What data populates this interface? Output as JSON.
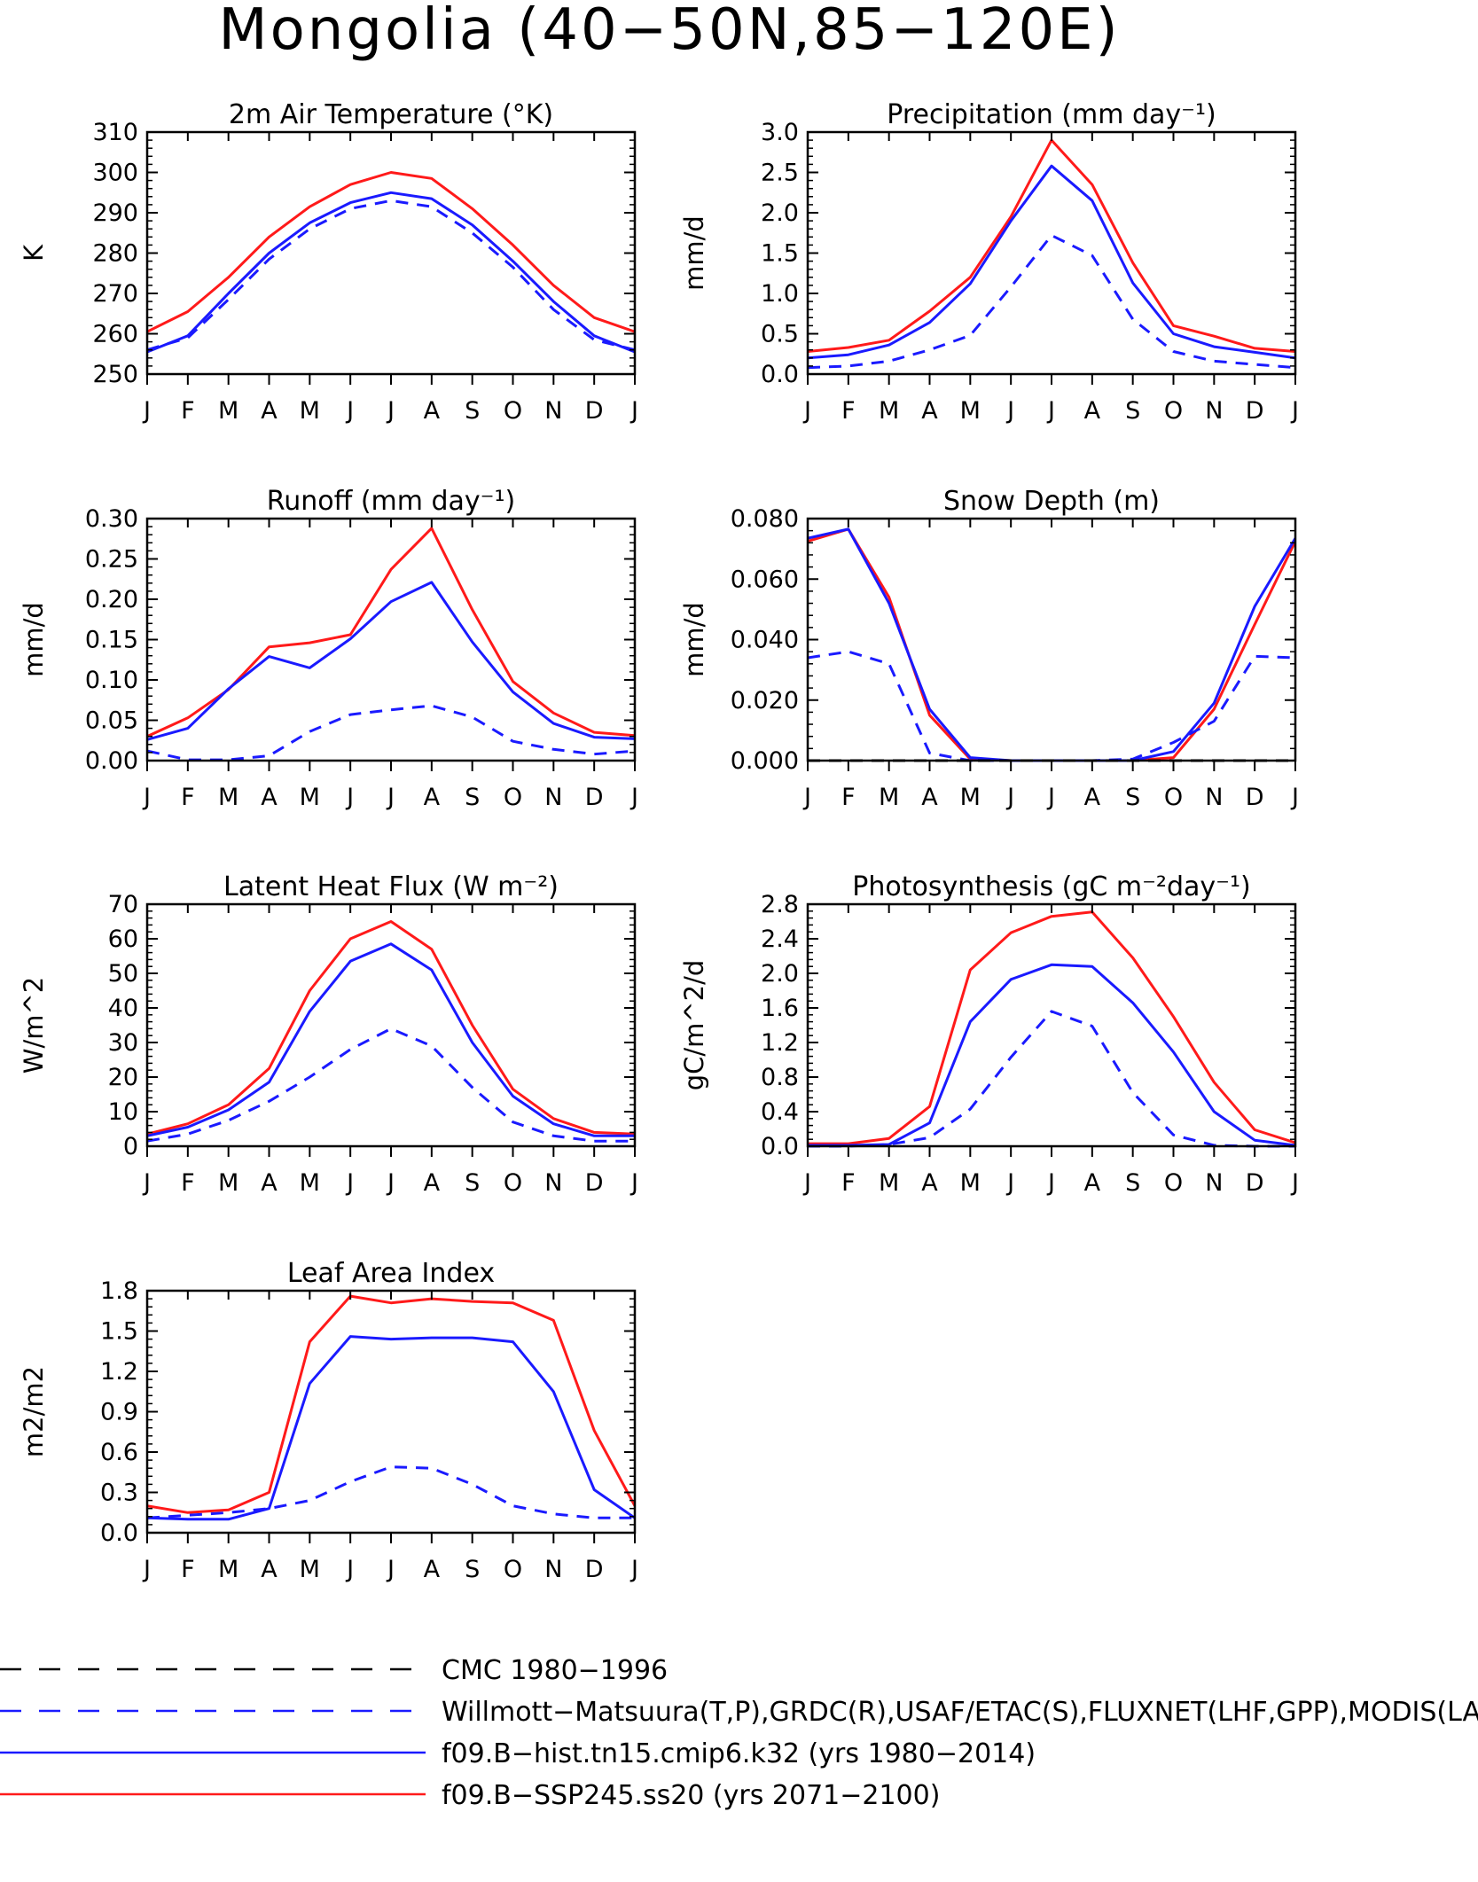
{
  "figure_title": "Mongolia (40−50N,85−120E)",
  "colors": {
    "axis": "#000000",
    "obs": "#1a1aff",
    "hist": "#1a1aff",
    "ssp": "#ff1a1a",
    "cmc": "#000000"
  },
  "month_labels": [
    "J",
    "F",
    "M",
    "A",
    "M",
    "J",
    "J",
    "A",
    "S",
    "O",
    "N",
    "D",
    "J"
  ],
  "legend": [
    {
      "label": "CMC 1980−1996",
      "color": "#000000",
      "style": "dash"
    },
    {
      "label": "Willmott−Matsuura(T,P),GRDC(R),USAF/ETAC(S),FLUXNET(LHF,GPP),MODIS(LAI)",
      "color": "#1a1aff",
      "style": "dash"
    },
    {
      "label": "f09.B−hist.tn15.cmip6.k32 (yrs 1980−2014)",
      "color": "#1a1aff",
      "style": "solid"
    },
    {
      "label": "f09.B−SSP245.ss20 (yrs 2071−2100)",
      "color": "#ff1a1a",
      "style": "solid"
    }
  ],
  "chart_data": [
    {
      "type": "line",
      "title": "2m Air Temperature (°K)",
      "ylabel": "K",
      "ylim": [
        250,
        310
      ],
      "yticks": [
        250,
        260,
        270,
        280,
        290,
        300,
        310
      ],
      "ytick_labels": [
        "250",
        "260",
        "270",
        "280",
        "290",
        "300",
        "310"
      ],
      "x": [
        "J",
        "F",
        "M",
        "A",
        "M",
        "J",
        "J",
        "A",
        "S",
        "O",
        "N",
        "D",
        "J"
      ],
      "series": [
        {
          "color": "#ff1a1a",
          "style": "solid",
          "values": [
            260.5,
            265.5,
            274,
            284,
            291.5,
            297,
            300,
            298.5,
            291,
            282,
            272,
            264,
            260.5
          ]
        },
        {
          "color": "#1a1aff",
          "style": "solid",
          "values": [
            255.5,
            259.5,
            270,
            280,
            287.5,
            292.5,
            295,
            293.5,
            287,
            278,
            268,
            259.5,
            255.5
          ]
        },
        {
          "color": "#1a1aff",
          "style": "dash",
          "values": [
            256,
            259,
            268.5,
            278.5,
            286,
            291,
            293,
            291.5,
            285,
            276.5,
            266,
            258.5,
            256
          ]
        }
      ]
    },
    {
      "type": "line",
      "title": "Precipitation (mm day⁻¹)",
      "ylabel": "mm/d",
      "ylim": [
        0,
        3
      ],
      "yticks": [
        0,
        0.5,
        1,
        1.5,
        2,
        2.5,
        3
      ],
      "ytick_labels": [
        "0.0",
        "0.5",
        "1.0",
        "1.5",
        "2.0",
        "2.5",
        "3.0"
      ],
      "x": [
        "J",
        "F",
        "M",
        "A",
        "M",
        "J",
        "J",
        "A",
        "S",
        "O",
        "N",
        "D",
        "J"
      ],
      "series": [
        {
          "color": "#ff1a1a",
          "style": "solid",
          "values": [
            0.28,
            0.33,
            0.42,
            0.78,
            1.2,
            1.95,
            2.9,
            2.35,
            1.38,
            0.6,
            0.47,
            0.32,
            0.28
          ]
        },
        {
          "color": "#1a1aff",
          "style": "solid",
          "values": [
            0.2,
            0.24,
            0.36,
            0.64,
            1.12,
            1.9,
            2.58,
            2.15,
            1.13,
            0.5,
            0.34,
            0.27,
            0.2
          ]
        },
        {
          "color": "#1a1aff",
          "style": "dash",
          "values": [
            0.08,
            0.1,
            0.16,
            0.3,
            0.48,
            1.08,
            1.72,
            1.47,
            0.68,
            0.28,
            0.16,
            0.12,
            0.08
          ]
        }
      ]
    },
    {
      "type": "line",
      "title": "Runoff (mm day⁻¹)",
      "ylabel": "mm/d",
      "ylim": [
        0,
        0.3
      ],
      "yticks": [
        0,
        0.05,
        0.1,
        0.15,
        0.2,
        0.25,
        0.3
      ],
      "ytick_labels": [
        "0.00",
        "0.05",
        "0.10",
        "0.15",
        "0.20",
        "0.25",
        "0.30"
      ],
      "x": [
        "J",
        "F",
        "M",
        "A",
        "M",
        "J",
        "J",
        "A",
        "S",
        "O",
        "N",
        "D",
        "J"
      ],
      "series": [
        {
          "color": "#ff1a1a",
          "style": "solid",
          "values": [
            0.03,
            0.053,
            0.088,
            0.141,
            0.146,
            0.156,
            0.237,
            0.288,
            0.187,
            0.098,
            0.059,
            0.035,
            0.031
          ]
        },
        {
          "color": "#1a1aff",
          "style": "solid",
          "values": [
            0.026,
            0.04,
            0.089,
            0.129,
            0.115,
            0.151,
            0.197,
            0.221,
            0.147,
            0.085,
            0.046,
            0.029,
            0.027
          ]
        },
        {
          "color": "#1a1aff",
          "style": "dash",
          "values": [
            0.012,
            0.001,
            0.001,
            0.006,
            0.036,
            0.057,
            0.063,
            0.068,
            0.054,
            0.024,
            0.014,
            0.008,
            0.012
          ]
        }
      ]
    },
    {
      "type": "line",
      "title": "Snow Depth (m)",
      "ylabel": "mm/d",
      "ylim": [
        0,
        0.08
      ],
      "yticks": [
        0,
        0.02,
        0.04,
        0.06,
        0.08
      ],
      "ytick_labels": [
        "0.000",
        "0.020",
        "0.040",
        "0.060",
        "0.080"
      ],
      "x": [
        "J",
        "F",
        "M",
        "A",
        "M",
        "J",
        "J",
        "A",
        "S",
        "O",
        "N",
        "D",
        "J"
      ],
      "series": [
        {
          "color": "#ff1a1a",
          "style": "solid",
          "values": [
            0.0725,
            0.0765,
            0.054,
            0.015,
            0.0005,
            0,
            0,
            0,
            0,
            0.001,
            0.017,
            0.045,
            0.0725
          ]
        },
        {
          "color": "#1a1aff",
          "style": "solid",
          "values": [
            0.0735,
            0.0765,
            0.052,
            0.017,
            0.001,
            0,
            0,
            0,
            0,
            0.003,
            0.019,
            0.051,
            0.0735
          ]
        },
        {
          "color": "#1a1aff",
          "style": "dash",
          "values": [
            0.034,
            0.036,
            0.032,
            0.0025,
            0,
            0,
            0,
            0,
            0.0005,
            0.006,
            0.013,
            0.0345,
            0.034
          ]
        },
        {
          "color": "#000000",
          "style": "dash",
          "values": [
            0,
            0,
            0,
            0,
            0,
            0,
            0,
            0,
            0,
            0,
            0,
            0,
            0
          ]
        }
      ]
    },
    {
      "type": "line",
      "title": "Latent Heat Flux (W m⁻²)",
      "ylabel": "W/m^2",
      "ylim": [
        0,
        70
      ],
      "yticks": [
        0,
        10,
        20,
        30,
        40,
        50,
        60,
        70
      ],
      "ytick_labels": [
        "0",
        "10",
        "20",
        "30",
        "40",
        "50",
        "60",
        "70"
      ],
      "x": [
        "J",
        "F",
        "M",
        "A",
        "M",
        "J",
        "J",
        "A",
        "S",
        "O",
        "N",
        "D",
        "J"
      ],
      "series": [
        {
          "color": "#ff1a1a",
          "style": "solid",
          "values": [
            3.5,
            6.5,
            12,
            22.5,
            45,
            60,
            65,
            57,
            35,
            16.5,
            8,
            4,
            3.5
          ]
        },
        {
          "color": "#1a1aff",
          "style": "solid",
          "values": [
            3,
            5.5,
            10.5,
            18.5,
            39,
            53.5,
            58.5,
            51,
            30,
            14.5,
            6.5,
            3,
            3
          ]
        },
        {
          "color": "#1a1aff",
          "style": "dash",
          "values": [
            1.5,
            3.5,
            7.5,
            13,
            20,
            28,
            34,
            29,
            17,
            7,
            3,
            1.5,
            1.5
          ]
        }
      ]
    },
    {
      "type": "line",
      "title": "Photosynthesis (gC m⁻²day⁻¹)",
      "ylabel": "gC/m^2/d",
      "ylim": [
        0,
        2.8
      ],
      "yticks": [
        0,
        0.4,
        0.8,
        1.2,
        1.6,
        2,
        2.4,
        2.8
      ],
      "ytick_labels": [
        "0.0",
        "0.4",
        "0.8",
        "1.2",
        "1.6",
        "2.0",
        "2.4",
        "2.8"
      ],
      "x": [
        "J",
        "F",
        "M",
        "A",
        "M",
        "J",
        "J",
        "A",
        "S",
        "O",
        "N",
        "D",
        "J"
      ],
      "series": [
        {
          "color": "#ff1a1a",
          "style": "solid",
          "values": [
            0.03,
            0.03,
            0.09,
            0.46,
            2.04,
            2.47,
            2.66,
            2.71,
            2.18,
            1.5,
            0.74,
            0.19,
            0.04
          ]
        },
        {
          "color": "#1a1aff",
          "style": "solid",
          "values": [
            0.01,
            0.01,
            0.02,
            0.27,
            1.44,
            1.93,
            2.1,
            2.08,
            1.66,
            1.09,
            0.4,
            0.07,
            0.01
          ]
        },
        {
          "color": "#1a1aff",
          "style": "dash",
          "values": [
            0,
            0,
            0.02,
            0.1,
            0.43,
            1.03,
            1.56,
            1.39,
            0.62,
            0.13,
            0.01,
            0,
            0
          ]
        }
      ]
    },
    {
      "type": "line",
      "title": "Leaf Area Index",
      "ylabel": "m2/m2",
      "ylim": [
        0,
        1.8
      ],
      "yticks": [
        0,
        0.3,
        0.6,
        0.9,
        1.2,
        1.5,
        1.8
      ],
      "ytick_labels": [
        "0.0",
        "0.3",
        "0.6",
        "0.9",
        "1.2",
        "1.5",
        "1.8"
      ],
      "x": [
        "J",
        "F",
        "M",
        "A",
        "M",
        "J",
        "J",
        "A",
        "S",
        "O",
        "N",
        "D",
        "J"
      ],
      "series": [
        {
          "color": "#ff1a1a",
          "style": "solid",
          "values": [
            0.2,
            0.15,
            0.17,
            0.3,
            1.42,
            1.76,
            1.71,
            1.74,
            1.72,
            1.71,
            1.58,
            0.76,
            0.2
          ]
        },
        {
          "color": "#1a1aff",
          "style": "solid",
          "values": [
            0.11,
            0.1,
            0.1,
            0.18,
            1.11,
            1.46,
            1.44,
            1.45,
            1.45,
            1.42,
            1.05,
            0.32,
            0.11
          ]
        },
        {
          "color": "#1a1aff",
          "style": "dash",
          "values": [
            0.11,
            0.13,
            0.15,
            0.18,
            0.24,
            0.38,
            0.49,
            0.48,
            0.36,
            0.2,
            0.14,
            0.11,
            0.11
          ]
        }
      ]
    }
  ]
}
